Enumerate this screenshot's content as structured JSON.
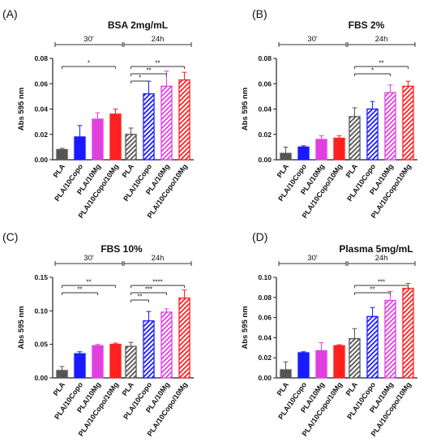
{
  "colors": {
    "gray": "#555555",
    "blue": "#1a1aff",
    "magenta": "#e040e0",
    "red": "#ff2020"
  },
  "chart_data": [
    {
      "panel_label": "(A)",
      "title": "BSA 2mg/mL",
      "type": "bar",
      "ylabel": "Abs 595 nm",
      "ylim": [
        0,
        0.08
      ],
      "yticks": [
        "0.00",
        "0.02",
        "0.04",
        "0.06",
        "0.08"
      ],
      "groups": [
        "30'",
        "24h"
      ],
      "categories": [
        "PLA",
        "PLA/10Copo",
        "PLA/10Mg",
        "PLA/10Copo/10Mg"
      ],
      "series": [
        {
          "group": "30'",
          "values": [
            0.008,
            0.018,
            0.032,
            0.036
          ],
          "errors": [
            0.001,
            0.009,
            0.005,
            0.004
          ]
        },
        {
          "group": "24h",
          "values": [
            0.02,
            0.052,
            0.058,
            0.063
          ],
          "errors": [
            0.005,
            0.01,
            0.012,
            0.006
          ]
        }
      ],
      "significance": [
        {
          "group": "30'",
          "from": 0,
          "to": 3,
          "label": "*"
        },
        {
          "group": "24h",
          "from": 0,
          "to": 1,
          "label": "*"
        },
        {
          "group": "24h",
          "from": 0,
          "to": 2,
          "label": "**"
        },
        {
          "group": "24h",
          "from": 0,
          "to": 3,
          "label": "**"
        }
      ]
    },
    {
      "panel_label": "(B)",
      "title": "FBS 2%",
      "type": "bar",
      "ylabel": "Abs 595 nm",
      "ylim": [
        0,
        0.08
      ],
      "yticks": [
        "0.00",
        "0.02",
        "0.04",
        "0.06",
        "0.08"
      ],
      "groups": [
        "30'",
        "24h"
      ],
      "categories": [
        "PLA",
        "PLA/10Copo",
        "PLA/10Mg",
        "PLA/10Copo/10Mg"
      ],
      "series": [
        {
          "group": "30'",
          "values": [
            0.005,
            0.01,
            0.016,
            0.017
          ],
          "errors": [
            0.005,
            0.001,
            0.003,
            0.002
          ]
        },
        {
          "group": "24h",
          "values": [
            0.034,
            0.04,
            0.053,
            0.058
          ],
          "errors": [
            0.007,
            0.006,
            0.006,
            0.004
          ]
        }
      ],
      "significance": [
        {
          "group": "24h",
          "from": 0,
          "to": 2,
          "label": "*"
        },
        {
          "group": "24h",
          "from": 0,
          "to": 3,
          "label": "**"
        }
      ]
    },
    {
      "panel_label": "(C)",
      "title": "FBS 10%",
      "type": "bar",
      "ylabel": "Abs 595 nm",
      "ylim": [
        0,
        0.15
      ],
      "yticks": [
        "0.00",
        "0.05",
        "0.10",
        "0.15"
      ],
      "groups": [
        "30'",
        "24h"
      ],
      "categories": [
        "PLA",
        "PLA/10Copo",
        "PLA/10Mg",
        "PLA/10Copo/10Mg"
      ],
      "series": [
        {
          "group": "30'",
          "values": [
            0.011,
            0.036,
            0.048,
            0.05
          ],
          "errors": [
            0.006,
            0.003,
            0.002,
            0.002
          ]
        },
        {
          "group": "24h",
          "values": [
            0.047,
            0.085,
            0.098,
            0.119
          ],
          "errors": [
            0.006,
            0.014,
            0.005,
            0.012
          ]
        }
      ],
      "significance": [
        {
          "group": "30'",
          "from": 0,
          "to": 2,
          "label": "**"
        },
        {
          "group": "30'",
          "from": 0,
          "to": 3,
          "label": "**"
        },
        {
          "group": "24h",
          "from": 0,
          "to": 1,
          "label": "**"
        },
        {
          "group": "24h",
          "from": 0,
          "to": 2,
          "label": "***"
        },
        {
          "group": "24h",
          "from": 0,
          "to": 3,
          "label": "****"
        }
      ]
    },
    {
      "panel_label": "(D)",
      "title": "Plasma 5mg/mL",
      "type": "bar",
      "ylabel": "Abs 595 nm",
      "ylim": [
        0,
        0.1
      ],
      "yticks": [
        "0.00",
        "0.02",
        "0.04",
        "0.06",
        "0.08",
        "0.10"
      ],
      "groups": [
        "30'",
        "24h"
      ],
      "categories": [
        "PLA",
        "PLA/10Copo",
        "PLA/10Mg",
        "PLA/10Copo/10Mg"
      ],
      "series": [
        {
          "group": "30'",
          "values": [
            0.008,
            0.025,
            0.027,
            0.032
          ],
          "errors": [
            0.008,
            0.001,
            0.008,
            0.001
          ]
        },
        {
          "group": "24h",
          "values": [
            0.039,
            0.061,
            0.077,
            0.089
          ],
          "errors": [
            0.01,
            0.009,
            0.009,
            0.005
          ]
        }
      ],
      "significance": [
        {
          "group": "24h",
          "from": 0,
          "to": 2,
          "label": "**"
        },
        {
          "group": "24h",
          "from": 0,
          "to": 3,
          "label": "***"
        }
      ]
    }
  ]
}
